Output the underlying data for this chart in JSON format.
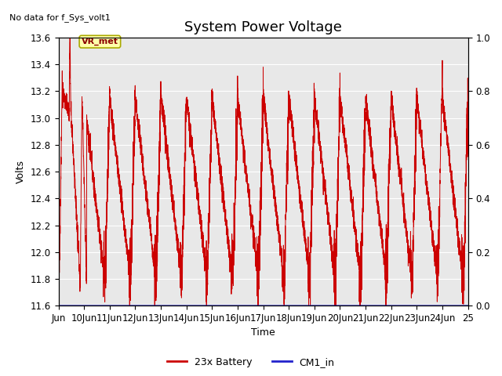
{
  "title": "System Power Voltage",
  "top_left_text": "No data for f_Sys_volt1",
  "xlabel": "Time",
  "ylabel": "Volts",
  "ylim_left": [
    11.6,
    13.6
  ],
  "ylim_right": [
    0.0,
    1.0
  ],
  "yticks_left": [
    11.6,
    11.8,
    12.0,
    12.2,
    12.4,
    12.6,
    12.8,
    13.0,
    13.2,
    13.4,
    13.6
  ],
  "yticks_right": [
    0.0,
    0.2,
    0.4,
    0.6,
    0.8,
    1.0
  ],
  "xticklabels": [
    "Jun",
    "10Jun",
    "11Jun",
    "12Jun",
    "13Jun",
    "14Jun",
    "15Jun",
    "16Jun",
    "17Jun",
    "18Jun",
    "19Jun",
    "20Jun",
    "21Jun",
    "22Jun",
    "23Jun",
    "24Jun",
    "25"
  ],
  "background_color": "#e8e8e8",
  "line_color_battery": "#cc0000",
  "line_color_cm1": "#2222cc",
  "legend_labels": [
    "23x Battery",
    "CM1_in"
  ],
  "annotation_text": "VR_met",
  "title_fontsize": 13,
  "label_fontsize": 9,
  "tick_fontsize": 8.5
}
